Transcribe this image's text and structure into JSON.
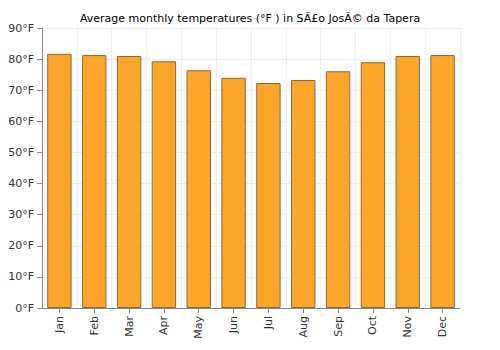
{
  "chart_data": {
    "type": "bar",
    "title": "Average monthly temperatures (°F ) in SÃ£o JosÃ© da Tapera",
    "categories": [
      "Jan",
      "Feb",
      "Mar",
      "Apr",
      "May",
      "Jun",
      "Jul",
      "Aug",
      "Sep",
      "Oct",
      "Nov",
      "Dec"
    ],
    "values": [
      81.7,
      81.3,
      81.0,
      79.3,
      76.4,
      74.0,
      72.3,
      73.3,
      76.1,
      79.0,
      81.0,
      81.3
    ],
    "color": "#fba52b",
    "ylim": [
      0,
      90
    ],
    "yticks": [
      {
        "value": 0,
        "label": "0°F"
      },
      {
        "value": 10,
        "label": "10°F"
      },
      {
        "value": 20,
        "label": "20°F"
      },
      {
        "value": 30,
        "label": "30°F"
      },
      {
        "value": 40,
        "label": "40°F"
      },
      {
        "value": 50,
        "label": "50°F"
      },
      {
        "value": 60,
        "label": "60°F"
      },
      {
        "value": 70,
        "label": "70°F"
      },
      {
        "value": 80,
        "label": "80°F"
      },
      {
        "value": 90,
        "label": "90°F"
      }
    ],
    "grid": true
  }
}
